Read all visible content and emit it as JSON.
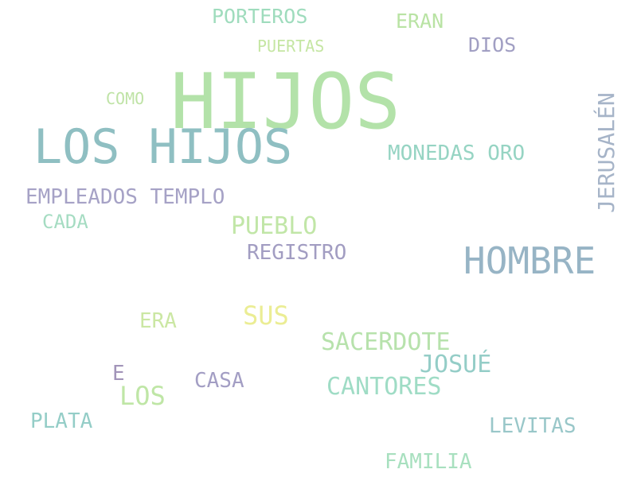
{
  "words": {
    "hijos": {
      "text": "HIJOS",
      "color": "#b3e2a9"
    },
    "los_hijos": {
      "text": "LOS HIJOS",
      "color": "#8fbfc2"
    },
    "hombre": {
      "text": "HOMBRE",
      "color": "#97b4c5"
    },
    "jerusalen": {
      "text": "JERUSALÉN",
      "color": "#a6b4c8"
    },
    "porteros": {
      "text": "PORTEROS",
      "color": "#9fdcbd"
    },
    "eran": {
      "text": "ERAN",
      "color": "#b9e3a4"
    },
    "puertas": {
      "text": "PUERTAS",
      "color": "#c5e6a3"
    },
    "dios": {
      "text": "DIOS",
      "color": "#a19fc3"
    },
    "como": {
      "text": "COMO",
      "color": "#bfe3a6"
    },
    "monedas": {
      "text": "MONEDAS ORO",
      "color": "#96d4c3"
    },
    "empleados": {
      "text": "EMPLEADOS TEMPLO",
      "color": "#a6a2c6"
    },
    "cada": {
      "text": "CADA",
      "color": "#a5dcc2"
    },
    "pueblo": {
      "text": "PUEBLO",
      "color": "#c1e6a7"
    },
    "registro": {
      "text": "REGISTRO",
      "color": "#a29dc2"
    },
    "sus": {
      "text": "SUS",
      "color": "#ebed94"
    },
    "era": {
      "text": "ERA",
      "color": "#cbe7a3"
    },
    "sacerdote": {
      "text": "SACERDOTE",
      "color": "#b7e2ac"
    },
    "josue": {
      "text": "JOSUÉ",
      "color": "#94cdc7"
    },
    "e": {
      "text": "E",
      "color": "#a294b9"
    },
    "casa": {
      "text": "CASA",
      "color": "#a39ec4"
    },
    "cantores": {
      "text": "CANTORES",
      "color": "#9fdcc5"
    },
    "los": {
      "text": "LOS",
      "color": "#bfe6a6"
    },
    "plata": {
      "text": "PLATA",
      "color": "#94cdc7"
    },
    "levitas": {
      "text": "LEVITAS",
      "color": "#99c7c9"
    },
    "familia": {
      "text": "FAMILIA",
      "color": "#a8e0bf"
    }
  }
}
